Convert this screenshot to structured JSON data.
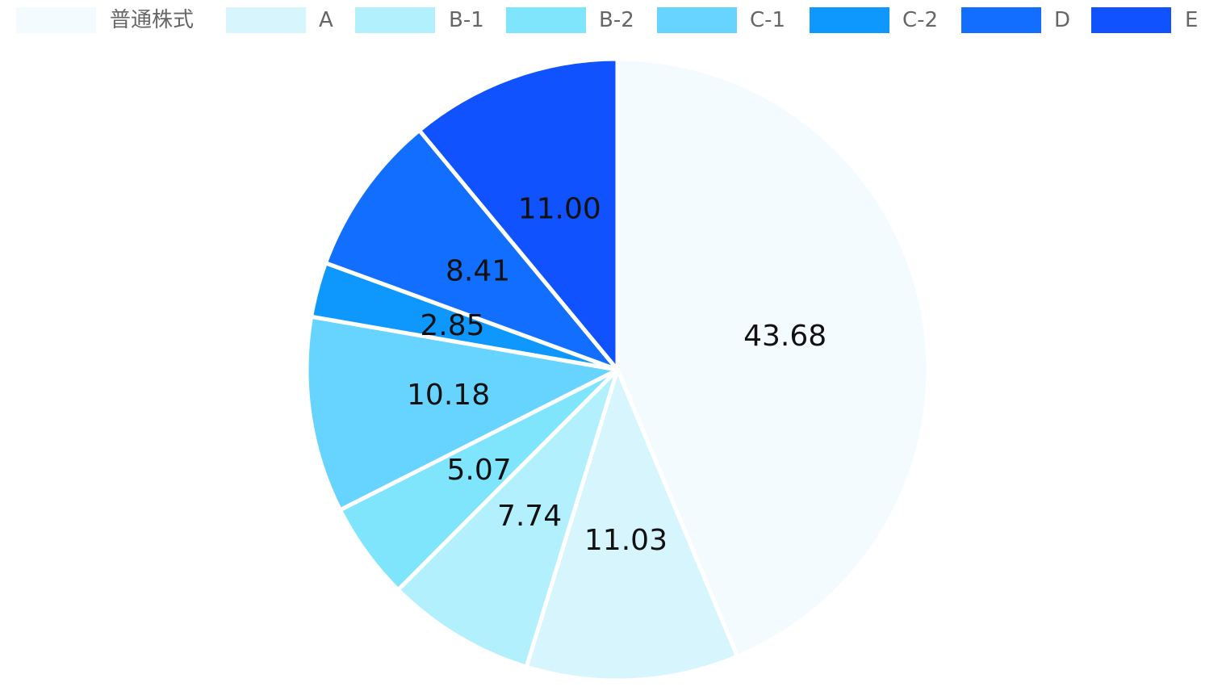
{
  "chart_data": {
    "type": "pie",
    "categories": [
      "普通株式",
      "A",
      "B-1",
      "B-2",
      "C-1",
      "C-2",
      "D",
      "E"
    ],
    "values": [
      43.68,
      11.03,
      7.74,
      5.07,
      10.18,
      2.85,
      8.41,
      11.0
    ],
    "labels": [
      "43.68",
      "11.03",
      "7.74",
      "5.07",
      "10.18",
      "2.85",
      "8.41",
      "11.00"
    ],
    "colors": [
      "#f4fbff",
      "#d7f5fd",
      "#b2f0fd",
      "#7fe5fd",
      "#66d4fe",
      "#0e98fe",
      "#126efe",
      "#0f52fe"
    ],
    "legend_position": "top",
    "start": "12 o'clock",
    "direction": "clockwise"
  }
}
